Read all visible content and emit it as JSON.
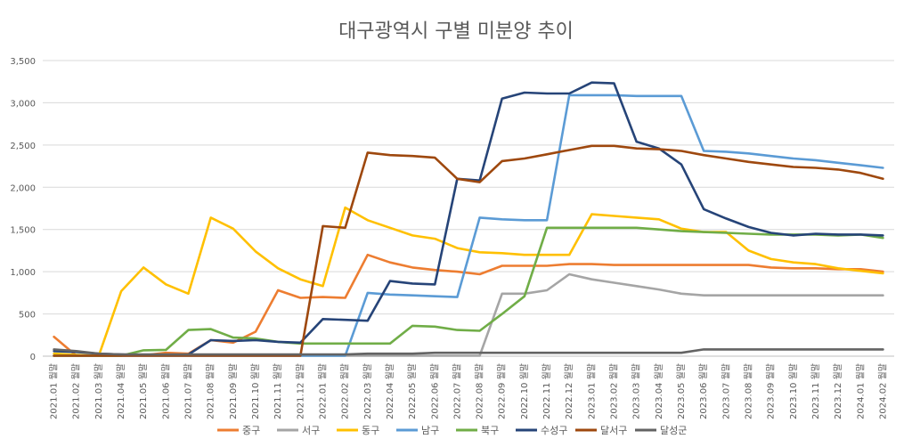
{
  "chart_data": {
    "type": "line",
    "title": "대구광역시 구별 미분양 추이",
    "ylim": [
      0,
      3500
    ],
    "yticks": [
      "0",
      "500",
      "1,000",
      "1,500",
      "2,000",
      "2,500",
      "3,000",
      "3,500"
    ],
    "x_suffix": "월말",
    "categories": [
      "2021.01",
      "2021.02",
      "2021.03",
      "2021.04",
      "2021.05",
      "2021.06",
      "2021.07",
      "2021.08",
      "2021.09",
      "2021.10",
      "2021.11",
      "2021.12",
      "2022.01",
      "2022.02",
      "2022.03",
      "2022.04",
      "2022.05",
      "2022.06",
      "2022.07",
      "2022.08",
      "2022.09",
      "2022.10",
      "2022.11",
      "2022.12",
      "2023.01",
      "2023.02",
      "2023.03",
      "2023.04",
      "2023.05",
      "2023.06",
      "2023.07",
      "2023.08",
      "2023.09",
      "2023.10",
      "2023.11",
      "2023.12",
      "2024.01",
      "2024.02"
    ],
    "grid": true,
    "legend_position": "bottom",
    "series": [
      {
        "name": "중구",
        "color": "#ED7D31",
        "values": [
          230,
          5,
          5,
          5,
          10,
          40,
          30,
          190,
          160,
          290,
          780,
          690,
          700,
          690,
          1200,
          1110,
          1050,
          1020,
          1000,
          970,
          1070,
          1070,
          1070,
          1090,
          1090,
          1080,
          1080,
          1080,
          1080,
          1080,
          1080,
          1080,
          1050,
          1040,
          1040,
          1030,
          1030,
          1000
        ]
      },
      {
        "name": "서구",
        "color": "#A5A5A5",
        "values": [
          5,
          5,
          5,
          5,
          5,
          5,
          5,
          5,
          5,
          5,
          5,
          5,
          5,
          5,
          5,
          5,
          5,
          5,
          5,
          5,
          740,
          740,
          780,
          970,
          910,
          870,
          830,
          790,
          740,
          720,
          720,
          720,
          720,
          720,
          720,
          720,
          720,
          720
        ]
      },
      {
        "name": "동구",
        "color": "#FFC000",
        "values": [
          30,
          15,
          5,
          770,
          1050,
          850,
          740,
          1640,
          1510,
          1240,
          1040,
          910,
          830,
          1760,
          1610,
          1520,
          1430,
          1390,
          1280,
          1230,
          1220,
          1200,
          1200,
          1200,
          1680,
          1660,
          1640,
          1620,
          1510,
          1470,
          1470,
          1250,
          1150,
          1110,
          1090,
          1040,
          1010,
          980
        ]
      },
      {
        "name": "남구",
        "color": "#5B9BD5",
        "values": [
          5,
          5,
          5,
          5,
          5,
          5,
          5,
          5,
          5,
          5,
          5,
          5,
          5,
          5,
          750,
          730,
          720,
          710,
          700,
          1640,
          1620,
          1610,
          1610,
          3090,
          3090,
          3090,
          3080,
          3080,
          3080,
          2430,
          2420,
          2400,
          2370,
          2340,
          2320,
          2290,
          2260,
          2230
        ]
      },
      {
        "name": "북구",
        "color": "#70AD47",
        "values": [
          5,
          5,
          5,
          5,
          70,
          75,
          310,
          320,
          220,
          210,
          170,
          150,
          150,
          150,
          150,
          150,
          360,
          350,
          310,
          300,
          500,
          710,
          1520,
          1520,
          1520,
          1520,
          1520,
          1500,
          1480,
          1470,
          1460,
          1450,
          1440,
          1440,
          1440,
          1430,
          1440,
          1400
        ]
      },
      {
        "name": "수성구",
        "color": "#264478",
        "values": [
          60,
          50,
          30,
          20,
          10,
          10,
          20,
          190,
          180,
          190,
          170,
          160,
          440,
          430,
          420,
          890,
          860,
          850,
          2100,
          2080,
          3050,
          3120,
          3110,
          3110,
          3240,
          3230,
          2540,
          2460,
          2270,
          1740,
          1630,
          1530,
          1460,
          1430,
          1450,
          1440,
          1440,
          1430
        ]
      },
      {
        "name": "달서구",
        "color": "#9E480E",
        "values": [
          5,
          5,
          5,
          5,
          5,
          5,
          5,
          5,
          5,
          5,
          5,
          5,
          1540,
          1520,
          2410,
          2380,
          2370,
          2350,
          2100,
          2060,
          2310,
          2340,
          2390,
          2440,
          2490,
          2490,
          2460,
          2450,
          2430,
          2380,
          2340,
          2300,
          2270,
          2240,
          2230,
          2210,
          2170,
          2100
        ]
      },
      {
        "name": "달성군",
        "color": "#636363",
        "values": [
          80,
          60,
          30,
          20,
          20,
          20,
          20,
          20,
          20,
          20,
          20,
          20,
          20,
          20,
          30,
          30,
          30,
          40,
          40,
          40,
          40,
          40,
          40,
          40,
          40,
          40,
          40,
          40,
          40,
          80,
          80,
          80,
          80,
          80,
          80,
          80,
          80,
          80
        ]
      }
    ]
  }
}
